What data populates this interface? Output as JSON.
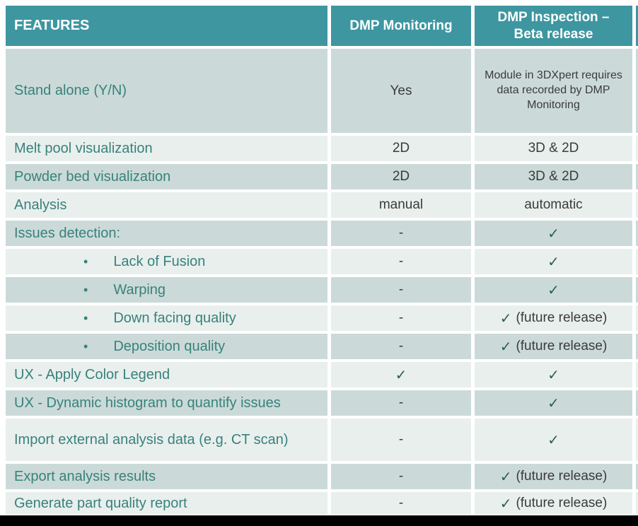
{
  "table": {
    "header": {
      "features": "FEATURES",
      "monitoring": "DMP Monitoring",
      "inspection_line1": "DMP Inspection –",
      "inspection_line2": "Beta release"
    },
    "glyphs": {
      "check": "✓",
      "bullet": "•"
    },
    "colors": {
      "header_teal": "#3E96A0",
      "row_tinted": "#CBDAD8",
      "row_light": "#E9EFED",
      "feature_text": "#38827C",
      "value_text": "#3B3B3B",
      "check_green": "#2B5F53",
      "footer_black": "#000000"
    },
    "rows": [
      {
        "label": "Stand alone (Y/N)",
        "bullet": false,
        "size": "xl",
        "monitoring": {
          "text": "Yes"
        },
        "inspection": {
          "text": "Module in 3DXpert requires data recorded by DMP Monitoring",
          "small": true
        }
      },
      {
        "label": "Melt pool visualization",
        "bullet": false,
        "monitoring": {
          "text": "2D"
        },
        "inspection": {
          "text": "3D & 2D"
        }
      },
      {
        "label": "Powder bed visualization",
        "bullet": false,
        "monitoring": {
          "text": "2D"
        },
        "inspection": {
          "text": "3D & 2D"
        }
      },
      {
        "label": "Analysis",
        "bullet": false,
        "monitoring": {
          "text": "manual"
        },
        "inspection": {
          "text": "automatic"
        }
      },
      {
        "label": "Issues detection:",
        "bullet": false,
        "monitoring": {
          "text": "-"
        },
        "inspection": {
          "check": true
        }
      },
      {
        "label": "Lack of Fusion",
        "bullet": true,
        "monitoring": {
          "text": "-"
        },
        "inspection": {
          "check": true
        }
      },
      {
        "label": "Warping",
        "bullet": true,
        "monitoring": {
          "text": "-"
        },
        "inspection": {
          "check": true
        }
      },
      {
        "label": "Down facing quality",
        "bullet": true,
        "monitoring": {
          "text": "-"
        },
        "inspection": {
          "check": true,
          "note": "(future release)"
        }
      },
      {
        "label": "Deposition quality",
        "bullet": true,
        "monitoring": {
          "text": "-"
        },
        "inspection": {
          "check": true,
          "note": "(future release)"
        }
      },
      {
        "label": "UX - Apply Color Legend",
        "bullet": false,
        "monitoring": {
          "check": true
        },
        "inspection": {
          "check": true
        }
      },
      {
        "label": "UX - Dynamic histogram to quantify issues",
        "bullet": false,
        "monitoring": {
          "text": "-"
        },
        "inspection": {
          "check": true
        }
      },
      {
        "label": "Import external analysis data (e.g. CT scan)",
        "bullet": false,
        "size": "lg",
        "monitoring": {
          "text": "-"
        },
        "inspection": {
          "check": true
        }
      },
      {
        "label": "Export analysis results",
        "bullet": false,
        "monitoring": {
          "text": "-"
        },
        "inspection": {
          "check": true,
          "note": "(future release)"
        }
      },
      {
        "label": "Generate part quality report",
        "bullet": false,
        "size": "sm",
        "monitoring": {
          "text": "-"
        },
        "inspection": {
          "check": true,
          "note": "(future release)"
        }
      }
    ]
  }
}
